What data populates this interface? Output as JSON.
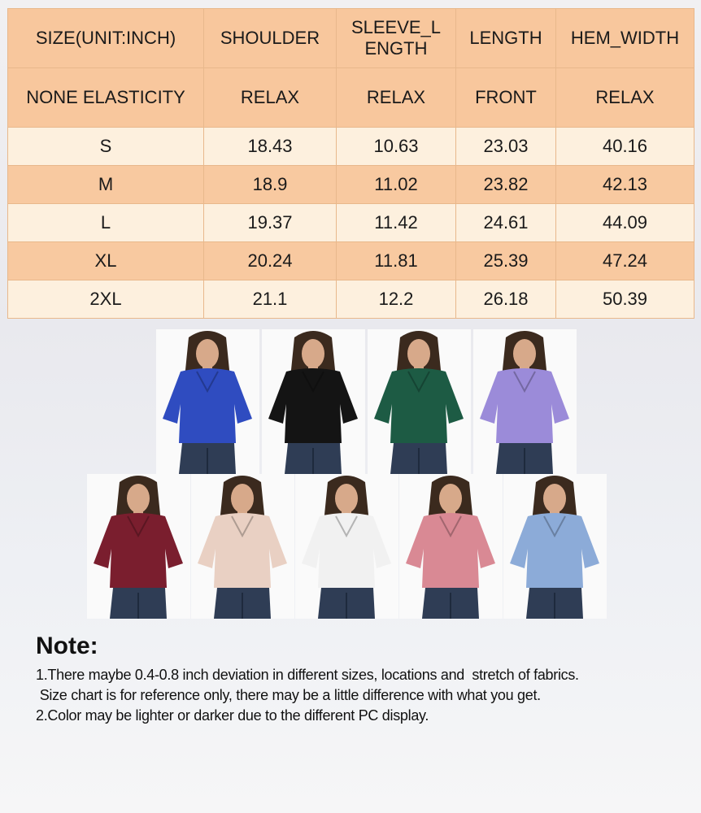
{
  "size_chart": {
    "header_row_1": [
      "SIZE(UNIT:INCH)",
      "SHOULDER",
      "SLEEVE_L ENGTH",
      "LENGTH",
      "HEM_WIDTH"
    ],
    "header_row_2": [
      "NONE ELASTICITY",
      "RELAX",
      "RELAX",
      "FRONT",
      "RELAX"
    ],
    "rows": [
      [
        "S",
        "18.43",
        "10.63",
        "23.03",
        "40.16"
      ],
      [
        "M",
        "18.9",
        "11.02",
        "23.82",
        "42.13"
      ],
      [
        "L",
        "19.37",
        "11.42",
        "24.61",
        "44.09"
      ],
      [
        "XL",
        "20.24",
        "11.81",
        "25.39",
        "47.24"
      ],
      [
        "2XL",
        "21.1",
        "12.2",
        "26.18",
        "50.39"
      ]
    ],
    "colors": {
      "header": "#f8c79d",
      "row_light": "#fdf0de",
      "row_dark": "#f8c9a0"
    }
  },
  "color_options": [
    {
      "name": "blue",
      "hex": "#2f4cc0"
    },
    {
      "name": "black",
      "hex": "#141414"
    },
    {
      "name": "green",
      "hex": "#1d5b44"
    },
    {
      "name": "lavender",
      "hex": "#9b8bd9"
    },
    {
      "name": "burgundy",
      "hex": "#7a1e2e"
    },
    {
      "name": "beige",
      "hex": "#e9d0c3"
    },
    {
      "name": "white",
      "hex": "#f1f1f1"
    },
    {
      "name": "pink",
      "hex": "#d98994"
    },
    {
      "name": "light-blue",
      "hex": "#8cabd8"
    }
  ],
  "notes": {
    "title": "Note:",
    "lines": [
      "1.There maybe 0.4-0.8 inch deviation in different sizes, locations and  stretch of fabrics.",
      " Size chart is for reference only, there may be a little difference with what you get.",
      "2.Color may be lighter or darker due to the different PC display."
    ]
  }
}
